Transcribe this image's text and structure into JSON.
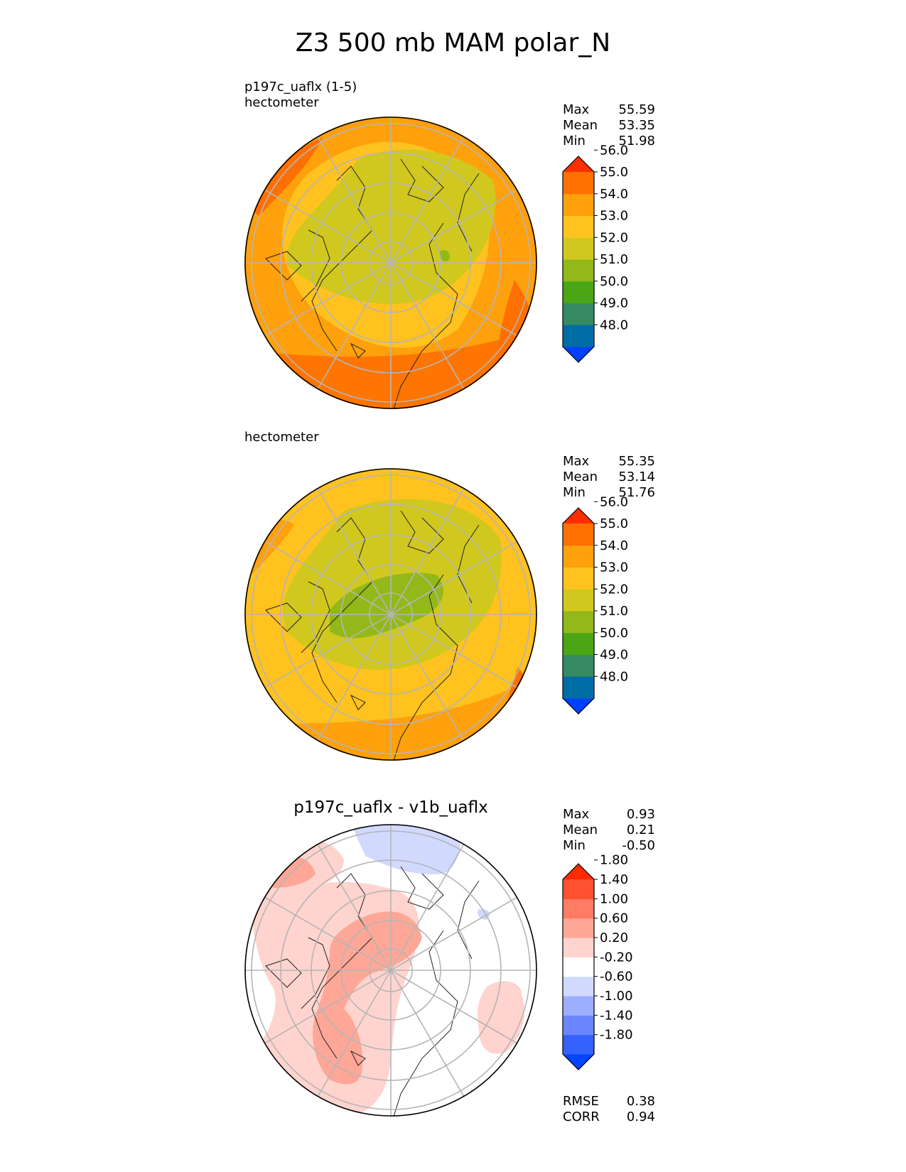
{
  "figure_title": "Z3 500 mb MAM polar_N",
  "panels": [
    {
      "title_lines": [
        "p197c_uaflx (1-5)",
        "hectometer"
      ],
      "stats": [
        {
          "label": "Max",
          "value": "55.59"
        },
        {
          "label": "Mean",
          "value": "53.35"
        },
        {
          "label": "Min",
          "value": "51.98"
        }
      ],
      "colorbar": {
        "colors": [
          "#0040ff",
          "#006ca6",
          "#368a63",
          "#4aa614",
          "#93b81a",
          "#d0c81e",
          "#ffc21f",
          "#ffa00d",
          "#ff7000",
          "#ff2e00"
        ],
        "ticks": [
          "48.0",
          "49.0",
          "50.0",
          "51.0",
          "52.0",
          "53.0",
          "54.0",
          "55.0",
          "56.0"
        ]
      }
    },
    {
      "title_lines": [
        "hectometer"
      ],
      "stats": [
        {
          "label": "Max",
          "value": "55.35"
        },
        {
          "label": "Mean",
          "value": "53.14"
        },
        {
          "label": "Min",
          "value": "51.76"
        }
      ],
      "colorbar": {
        "colors": [
          "#0040ff",
          "#006ca6",
          "#368a63",
          "#4aa614",
          "#93b81a",
          "#d0c81e",
          "#ffc21f",
          "#ffa00d",
          "#ff7000",
          "#ff2e00"
        ],
        "ticks": [
          "48.0",
          "49.0",
          "50.0",
          "51.0",
          "52.0",
          "53.0",
          "54.0",
          "55.0",
          "56.0"
        ]
      }
    },
    {
      "title": "p197c_uaflx - v1b_uaflx",
      "stats": [
        {
          "label": "Max",
          "value": "0.93"
        },
        {
          "label": "Mean",
          "value": "0.21"
        },
        {
          "label": "Min",
          "value": "-0.50"
        }
      ],
      "colorbar": {
        "colors": [
          "#0044ff",
          "#3561ff",
          "#6a86ff",
          "#9eaeff",
          "#d2d9ff",
          "#ffffff",
          "#ffd4ce",
          "#ffa797",
          "#ff7b64",
          "#ff5030",
          "#ff2a00"
        ],
        "ticks": [
          "-1.80",
          "-1.40",
          "-1.00",
          "-0.60",
          "-0.20",
          "0.20",
          "0.60",
          "1.00",
          "1.40",
          "1.80"
        ]
      },
      "metrics": [
        {
          "label": "RMSE",
          "value": "0.38"
        },
        {
          "label": "CORR",
          "value": "0.94"
        }
      ]
    }
  ]
}
